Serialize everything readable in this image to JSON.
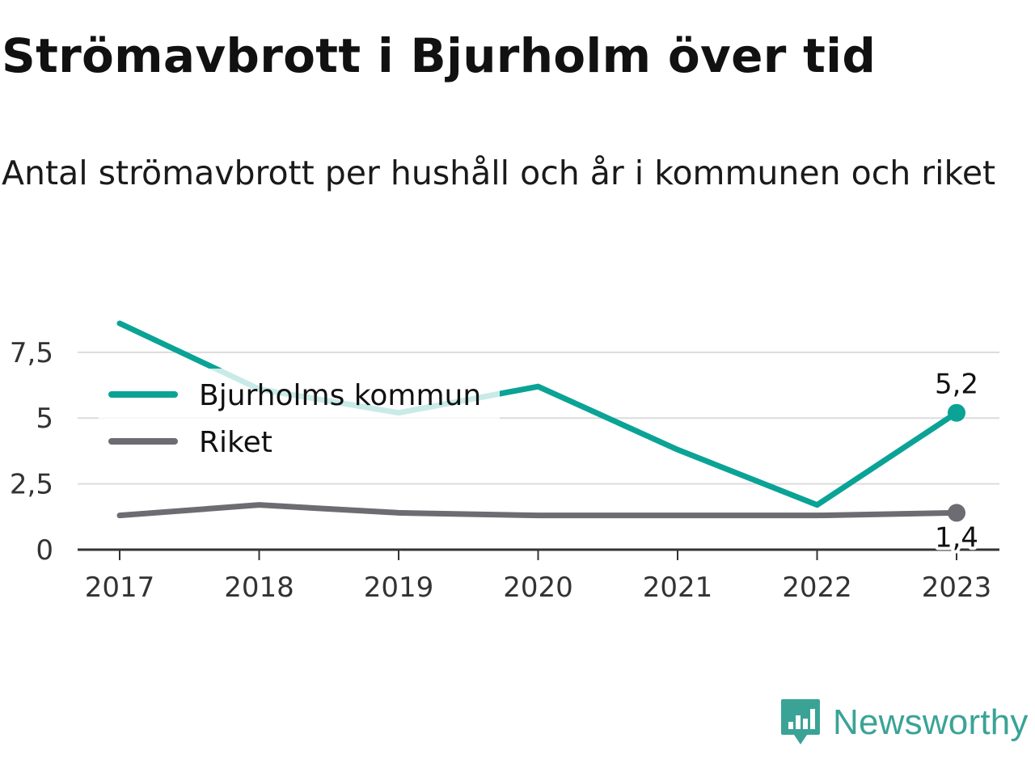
{
  "title": "Strömavbrott i Bjurholm över tid",
  "subtitle": "Antal strömavbrott per hushåll och år i kommunen och riket",
  "brand": {
    "name": "Newsworthy",
    "color": "#3aa396",
    "icon": "newsworthy-logo-icon"
  },
  "chart_data": {
    "type": "line",
    "title": "Strömavbrott i Bjurholm över tid",
    "subtitle": "Antal strömavbrott per hushåll och år i kommunen och riket",
    "xlabel": "",
    "ylabel": "",
    "categories": [
      "2017",
      "2018",
      "2019",
      "2020",
      "2021",
      "2022",
      "2023"
    ],
    "ylim": [
      0,
      8.6
    ],
    "yticks": [
      {
        "value": 0,
        "label": "0"
      },
      {
        "value": 2.5,
        "label": "2,5"
      },
      {
        "value": 5,
        "label": "5"
      },
      {
        "value": 7.5,
        "label": "7,5"
      }
    ],
    "grid": true,
    "legend_position": "top-left",
    "series": [
      {
        "name": "Bjurholms kommun",
        "color": "#0aa396",
        "values": [
          8.6,
          6.1,
          5.2,
          6.2,
          3.8,
          1.7,
          5.2
        ],
        "end_label": "5,2"
      },
      {
        "name": "Riket",
        "color": "#6d6c72",
        "values": [
          1.3,
          1.7,
          1.4,
          1.3,
          1.3,
          1.3,
          1.4
        ],
        "end_label": "1,4"
      }
    ]
  }
}
